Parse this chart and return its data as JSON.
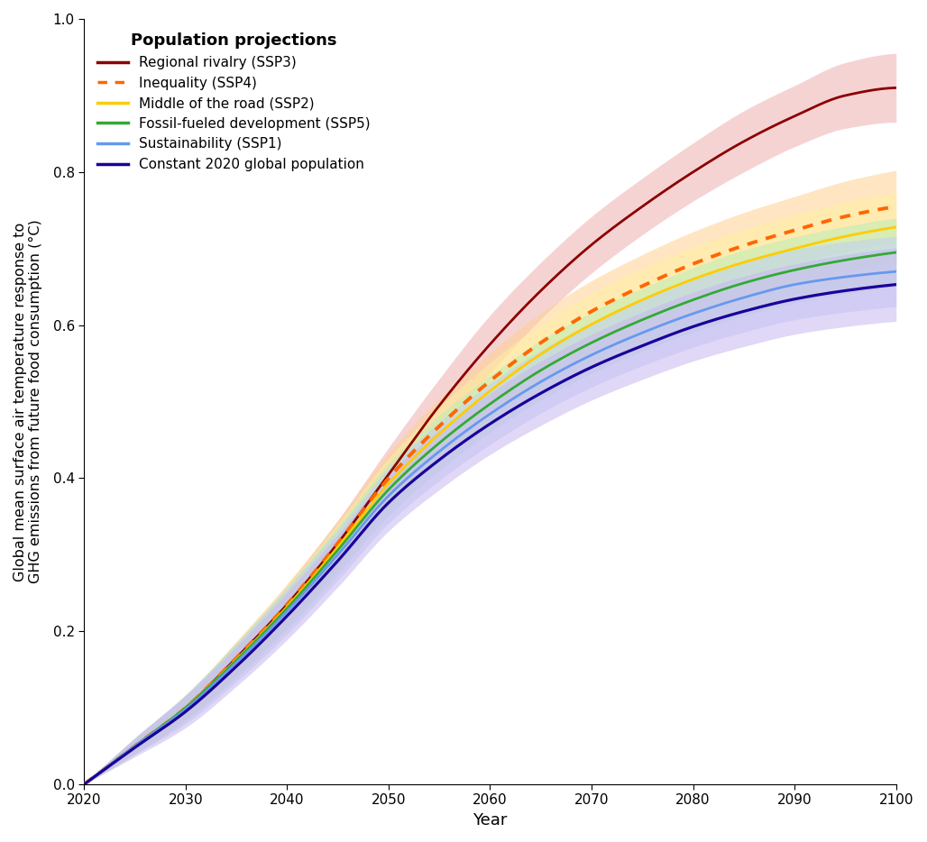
{
  "title": "Population projections",
  "xlabel": "Year",
  "ylabel": "Global mean surface air temperature response to\nGHG emissions from future food consumption (°C)",
  "xlim": [
    2020,
    2100
  ],
  "ylim": [
    0,
    1.0
  ],
  "yticks": [
    0,
    0.2,
    0.4,
    0.6,
    0.8,
    1.0
  ],
  "xticks": [
    2020,
    2030,
    2040,
    2050,
    2060,
    2070,
    2080,
    2090,
    2100
  ],
  "series": [
    {
      "name": "Regional rivalry (SSP3)",
      "color": "#8B0000",
      "shade_color": "#f0b0b0",
      "linestyle": "solid",
      "linewidth": 2.0,
      "knot_years": [
        2020,
        2025,
        2030,
        2035,
        2040,
        2045,
        2050,
        2055,
        2060,
        2065,
        2070,
        2075,
        2080,
        2085,
        2090,
        2095,
        2100
      ],
      "values": [
        0.0,
        0.05,
        0.1,
        0.165,
        0.235,
        0.315,
        0.405,
        0.495,
        0.575,
        0.645,
        0.705,
        0.755,
        0.8,
        0.84,
        0.873,
        0.9,
        0.91
      ],
      "shade_lo": [
        0.0,
        0.04,
        0.085,
        0.145,
        0.21,
        0.285,
        0.37,
        0.46,
        0.537,
        0.608,
        0.668,
        0.718,
        0.762,
        0.8,
        0.833,
        0.857,
        0.865
      ],
      "shade_hi": [
        0.0,
        0.06,
        0.115,
        0.185,
        0.26,
        0.345,
        0.44,
        0.53,
        0.613,
        0.682,
        0.742,
        0.792,
        0.838,
        0.88,
        0.913,
        0.943,
        0.955
      ]
    },
    {
      "name": "Inequality (SSP4)",
      "color": "#FF6600",
      "shade_color": "#ffd090",
      "linestyle": "dotted",
      "linewidth": 2.8,
      "knot_years": [
        2020,
        2025,
        2030,
        2035,
        2040,
        2045,
        2050,
        2055,
        2060,
        2065,
        2070,
        2075,
        2080,
        2085,
        2090,
        2095,
        2100
      ],
      "values": [
        0.0,
        0.05,
        0.1,
        0.165,
        0.235,
        0.315,
        0.4,
        0.468,
        0.527,
        0.577,
        0.618,
        0.651,
        0.68,
        0.704,
        0.724,
        0.742,
        0.755
      ],
      "shade_lo": [
        0.0,
        0.04,
        0.085,
        0.143,
        0.208,
        0.285,
        0.367,
        0.432,
        0.49,
        0.538,
        0.578,
        0.61,
        0.638,
        0.661,
        0.68,
        0.696,
        0.708
      ],
      "shade_hi": [
        0.0,
        0.06,
        0.115,
        0.187,
        0.262,
        0.345,
        0.433,
        0.504,
        0.564,
        0.616,
        0.658,
        0.692,
        0.722,
        0.747,
        0.768,
        0.788,
        0.802
      ]
    },
    {
      "name": "Middle of the road (SSP2)",
      "color": "#FFCC00",
      "shade_color": "#fff0a0",
      "linestyle": "solid",
      "linewidth": 2.0,
      "knot_years": [
        2020,
        2025,
        2030,
        2035,
        2040,
        2045,
        2050,
        2055,
        2060,
        2065,
        2070,
        2075,
        2080,
        2085,
        2090,
        2095,
        2100
      ],
      "values": [
        0.0,
        0.05,
        0.1,
        0.163,
        0.232,
        0.31,
        0.393,
        0.458,
        0.514,
        0.562,
        0.601,
        0.633,
        0.66,
        0.682,
        0.7,
        0.716,
        0.728
      ],
      "shade_lo": [
        0.0,
        0.04,
        0.083,
        0.14,
        0.205,
        0.28,
        0.36,
        0.423,
        0.477,
        0.523,
        0.561,
        0.592,
        0.618,
        0.639,
        0.656,
        0.671,
        0.682
      ],
      "shade_hi": [
        0.0,
        0.06,
        0.117,
        0.186,
        0.259,
        0.34,
        0.426,
        0.493,
        0.551,
        0.601,
        0.641,
        0.674,
        0.702,
        0.725,
        0.744,
        0.761,
        0.774
      ]
    },
    {
      "name": "Fossil-fueled development (SSP5)",
      "color": "#33AA33",
      "shade_color": "#b8eeb8",
      "linestyle": "solid",
      "linewidth": 2.0,
      "knot_years": [
        2020,
        2025,
        2030,
        2035,
        2040,
        2045,
        2050,
        2055,
        2060,
        2065,
        2070,
        2075,
        2080,
        2085,
        2090,
        2095,
        2100
      ],
      "values": [
        0.0,
        0.05,
        0.1,
        0.162,
        0.23,
        0.306,
        0.385,
        0.446,
        0.497,
        0.541,
        0.577,
        0.607,
        0.633,
        0.655,
        0.672,
        0.685,
        0.695
      ],
      "shade_lo": [
        0.0,
        0.04,
        0.083,
        0.139,
        0.202,
        0.275,
        0.351,
        0.41,
        0.46,
        0.502,
        0.537,
        0.566,
        0.591,
        0.612,
        0.629,
        0.641,
        0.65
      ],
      "shade_hi": [
        0.0,
        0.06,
        0.117,
        0.185,
        0.258,
        0.337,
        0.419,
        0.482,
        0.534,
        0.58,
        0.617,
        0.648,
        0.675,
        0.698,
        0.715,
        0.729,
        0.74
      ]
    },
    {
      "name": "Sustainability (SSP1)",
      "color": "#6699EE",
      "shade_color": "#c0d0f8",
      "linestyle": "solid",
      "linewidth": 2.0,
      "knot_years": [
        2020,
        2025,
        2030,
        2035,
        2040,
        2045,
        2050,
        2055,
        2060,
        2065,
        2070,
        2075,
        2080,
        2085,
        2090,
        2095,
        2100
      ],
      "values": [
        0.0,
        0.05,
        0.098,
        0.159,
        0.226,
        0.3,
        0.377,
        0.435,
        0.484,
        0.526,
        0.561,
        0.59,
        0.615,
        0.636,
        0.653,
        0.663,
        0.67
      ],
      "shade_lo": [
        0.0,
        0.039,
        0.079,
        0.134,
        0.196,
        0.267,
        0.341,
        0.397,
        0.444,
        0.485,
        0.519,
        0.547,
        0.571,
        0.591,
        0.607,
        0.617,
        0.624
      ],
      "shade_hi": [
        0.0,
        0.061,
        0.117,
        0.184,
        0.256,
        0.333,
        0.413,
        0.473,
        0.524,
        0.567,
        0.603,
        0.633,
        0.659,
        0.681,
        0.699,
        0.709,
        0.716
      ]
    },
    {
      "name": "Constant 2020 global population",
      "color": "#1a0099",
      "shade_color": "#c8b8f0",
      "linestyle": "solid",
      "linewidth": 2.3,
      "knot_years": [
        2020,
        2025,
        2030,
        2035,
        2040,
        2045,
        2050,
        2055,
        2060,
        2065,
        2070,
        2075,
        2080,
        2085,
        2090,
        2095,
        2100
      ],
      "values": [
        0.0,
        0.048,
        0.095,
        0.154,
        0.22,
        0.292,
        0.368,
        0.424,
        0.471,
        0.511,
        0.545,
        0.573,
        0.598,
        0.618,
        0.634,
        0.645,
        0.653
      ],
      "shade_lo": [
        0.0,
        0.036,
        0.074,
        0.128,
        0.189,
        0.258,
        0.331,
        0.385,
        0.431,
        0.469,
        0.502,
        0.529,
        0.553,
        0.572,
        0.588,
        0.598,
        0.605
      ],
      "shade_hi": [
        0.0,
        0.06,
        0.116,
        0.18,
        0.251,
        0.326,
        0.405,
        0.463,
        0.511,
        0.553,
        0.588,
        0.617,
        0.643,
        0.664,
        0.68,
        0.692,
        0.701
      ]
    }
  ],
  "background_color": "#ffffff"
}
